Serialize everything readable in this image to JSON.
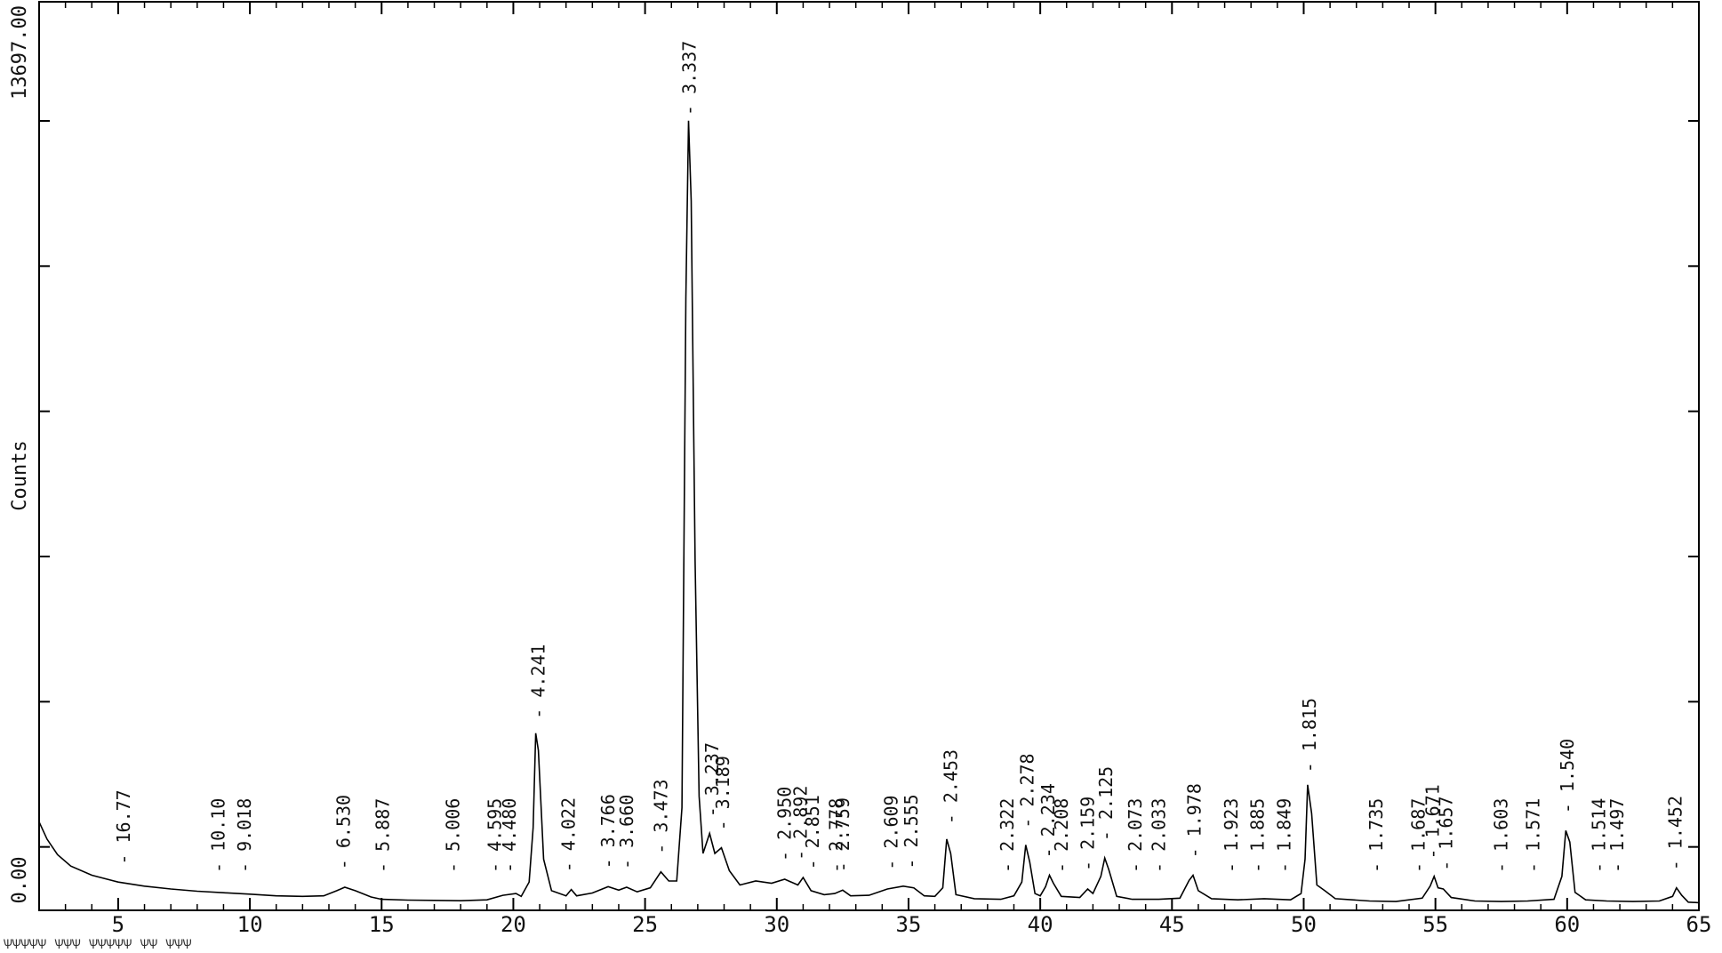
{
  "chart_data": {
    "type": "line",
    "xlabel": "",
    "ylabel": "Counts",
    "xlim": [
      2,
      65
    ],
    "ylim": [
      0,
      13697
    ],
    "y_tick_labels": [
      "0.00",
      "13697.00"
    ],
    "x_ticks": [
      5,
      10,
      15,
      20,
      25,
      30,
      35,
      40,
      45,
      50,
      55,
      60,
      65
    ],
    "grid": false,
    "line_color": "#000000",
    "profile_points": [
      [
        2,
        1450
      ],
      [
        2.3,
        1150
      ],
      [
        2.7,
        880
      ],
      [
        3.2,
        680
      ],
      [
        4,
        520
      ],
      [
        5,
        400
      ],
      [
        6,
        330
      ],
      [
        7,
        280
      ],
      [
        8,
        240
      ],
      [
        9,
        215
      ],
      [
        10,
        190
      ],
      [
        11,
        160
      ],
      [
        12,
        150
      ],
      [
        12.8,
        160
      ],
      [
        13.3,
        250
      ],
      [
        13.6,
        310
      ],
      [
        14,
        250
      ],
      [
        14.6,
        140
      ],
      [
        15,
        100
      ],
      [
        16,
        85
      ],
      [
        17,
        80
      ],
      [
        18,
        75
      ],
      [
        19,
        90
      ],
      [
        19.6,
        170
      ],
      [
        20.1,
        200
      ],
      [
        20.3,
        150
      ],
      [
        20.6,
        400
      ],
      [
        20.75,
        1350
      ],
      [
        20.85,
        3000
      ],
      [
        20.95,
        2700
      ],
      [
        21.15,
        800
      ],
      [
        21.45,
        250
      ],
      [
        22,
        160
      ],
      [
        22.2,
        270
      ],
      [
        22.4,
        160
      ],
      [
        23,
        210
      ],
      [
        23.6,
        320
      ],
      [
        24,
        260
      ],
      [
        24.3,
        310
      ],
      [
        24.7,
        230
      ],
      [
        25.2,
        300
      ],
      [
        25.6,
        580
      ],
      [
        25.9,
        420
      ],
      [
        26.2,
        420
      ],
      [
        26.4,
        1700
      ],
      [
        26.55,
        10600
      ],
      [
        26.65,
        13700
      ],
      [
        26.75,
        12300
      ],
      [
        26.9,
        6000
      ],
      [
        27.05,
        1900
      ],
      [
        27.2,
        900
      ],
      [
        27.45,
        1250
      ],
      [
        27.65,
        900
      ],
      [
        27.9,
        1000
      ],
      [
        28.2,
        600
      ],
      [
        28.6,
        350
      ],
      [
        29.2,
        420
      ],
      [
        29.8,
        380
      ],
      [
        30.3,
        450
      ],
      [
        30.8,
        350
      ],
      [
        31.0,
        480
      ],
      [
        31.3,
        250
      ],
      [
        31.8,
        180
      ],
      [
        32.2,
        200
      ],
      [
        32.5,
        260
      ],
      [
        32.8,
        160
      ],
      [
        33.5,
        170
      ],
      [
        34.2,
        280
      ],
      [
        34.8,
        330
      ],
      [
        35.2,
        300
      ],
      [
        35.6,
        160
      ],
      [
        36.0,
        150
      ],
      [
        36.3,
        300
      ],
      [
        36.45,
        1150
      ],
      [
        36.6,
        900
      ],
      [
        36.8,
        180
      ],
      [
        37.5,
        110
      ],
      [
        38.5,
        100
      ],
      [
        39.0,
        160
      ],
      [
        39.3,
        400
      ],
      [
        39.45,
        1050
      ],
      [
        39.6,
        750
      ],
      [
        39.8,
        200
      ],
      [
        40.0,
        160
      ],
      [
        40.2,
        320
      ],
      [
        40.35,
        520
      ],
      [
        40.5,
        380
      ],
      [
        40.8,
        150
      ],
      [
        41.5,
        130
      ],
      [
        41.8,
        280
      ],
      [
        42.0,
        200
      ],
      [
        42.3,
        500
      ],
      [
        42.45,
        820
      ],
      [
        42.6,
        620
      ],
      [
        42.9,
        150
      ],
      [
        43.5,
        100
      ],
      [
        44.5,
        100
      ],
      [
        45.3,
        120
      ],
      [
        45.65,
        430
      ],
      [
        45.8,
        520
      ],
      [
        46.0,
        250
      ],
      [
        46.5,
        110
      ],
      [
        47.5,
        90
      ],
      [
        48.5,
        110
      ],
      [
        49.5,
        90
      ],
      [
        49.9,
        200
      ],
      [
        50.05,
        800
      ],
      [
        50.15,
        2100
      ],
      [
        50.3,
        1600
      ],
      [
        50.5,
        350
      ],
      [
        50.8,
        250
      ],
      [
        51.2,
        110
      ],
      [
        52.5,
        70
      ],
      [
        53.5,
        60
      ],
      [
        54.5,
        120
      ],
      [
        54.8,
        330
      ],
      [
        54.95,
        500
      ],
      [
        55.1,
        300
      ],
      [
        55.3,
        280
      ],
      [
        55.6,
        130
      ],
      [
        56.5,
        70
      ],
      [
        57.5,
        60
      ],
      [
        58.5,
        70
      ],
      [
        59.5,
        100
      ],
      [
        59.8,
        500
      ],
      [
        59.95,
        1300
      ],
      [
        60.1,
        1100
      ],
      [
        60.3,
        220
      ],
      [
        60.7,
        90
      ],
      [
        61.5,
        70
      ],
      [
        62.5,
        60
      ],
      [
        63.5,
        70
      ],
      [
        64.0,
        150
      ],
      [
        64.15,
        300
      ],
      [
        64.35,
        170
      ],
      [
        64.6,
        50
      ],
      [
        65,
        40
      ]
    ],
    "peak_labels": [
      {
        "x": 5.2,
        "label": "16.77"
      },
      {
        "x": 8.8,
        "label": "10.10"
      },
      {
        "x": 9.8,
        "label": "9.018"
      },
      {
        "x": 13.55,
        "label": "6.530"
      },
      {
        "x": 15.05,
        "label": "5.887"
      },
      {
        "x": 17.7,
        "label": "5.006"
      },
      {
        "x": 19.3,
        "label": "4.595"
      },
      {
        "x": 19.85,
        "label": "4.480"
      },
      {
        "x": 20.95,
        "label": "4.241"
      },
      {
        "x": 22.1,
        "label": "4.022"
      },
      {
        "x": 23.6,
        "label": "3.766"
      },
      {
        "x": 24.3,
        "label": "3.660"
      },
      {
        "x": 25.6,
        "label": "3.473"
      },
      {
        "x": 26.69,
        "label": "3.337"
      },
      {
        "x": 27.55,
        "label": "3.237"
      },
      {
        "x": 27.95,
        "label": "3.189"
      },
      {
        "x": 30.3,
        "label": "2.950"
      },
      {
        "x": 30.9,
        "label": "2.892"
      },
      {
        "x": 31.35,
        "label": "2.851"
      },
      {
        "x": 32.25,
        "label": "2.778"
      },
      {
        "x": 32.5,
        "label": "2.759"
      },
      {
        "x": 34.35,
        "label": "2.609"
      },
      {
        "x": 35.1,
        "label": "2.555"
      },
      {
        "x": 36.6,
        "label": "2.453"
      },
      {
        "x": 38.75,
        "label": "2.322"
      },
      {
        "x": 39.5,
        "label": "2.278"
      },
      {
        "x": 40.3,
        "label": "2.234"
      },
      {
        "x": 40.8,
        "label": "2.208"
      },
      {
        "x": 41.8,
        "label": "2.159"
      },
      {
        "x": 42.5,
        "label": "2.125"
      },
      {
        "x": 43.6,
        "label": "2.073"
      },
      {
        "x": 44.5,
        "label": "2.033"
      },
      {
        "x": 45.85,
        "label": "1.978"
      },
      {
        "x": 47.25,
        "label": "1.923"
      },
      {
        "x": 48.25,
        "label": "1.885"
      },
      {
        "x": 49.25,
        "label": "1.849"
      },
      {
        "x": 50.22,
        "label": "1.815"
      },
      {
        "x": 52.75,
        "label": "1.735"
      },
      {
        "x": 54.35,
        "label": "1.687"
      },
      {
        "x": 54.9,
        "label": "1.671"
      },
      {
        "x": 55.4,
        "label": "1.657"
      },
      {
        "x": 57.5,
        "label": "1.603"
      },
      {
        "x": 58.7,
        "label": "1.571"
      },
      {
        "x": 60.0,
        "label": "1.540"
      },
      {
        "x": 61.2,
        "label": "1.514"
      },
      {
        "x": 61.9,
        "label": "1.497"
      },
      {
        "x": 64.1,
        "label": "1.452"
      }
    ]
  },
  "footer": {
    "text": "ѰѰѰѰѰ ѰѰѰ ѰѰѰѰѰ ѰѰ ѰѰѰ"
  }
}
